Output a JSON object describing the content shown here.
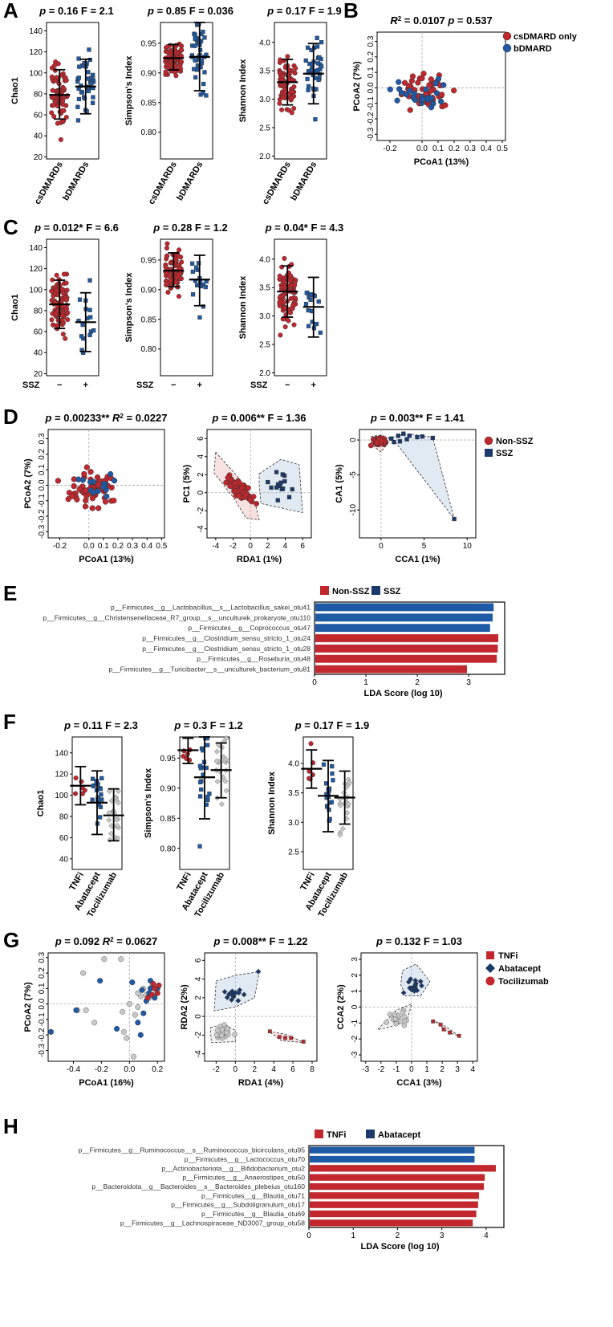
{
  "panel_labels": [
    "A",
    "B",
    "C",
    "D",
    "E",
    "F",
    "G",
    "H"
  ],
  "colors": {
    "red": "#c1272d",
    "blue": "#1f5aa6",
    "navy": "#1b3a6b",
    "gray": "#c8c8c8",
    "bar_red": "#c1272d",
    "bar_blue": "#1f5aa6"
  },
  "chart_data": [
    {
      "id": "A1",
      "panel": "A",
      "type": "scatter",
      "title": "p = 0.16   F = 2.1",
      "ylabel": "Chao1",
      "categories": [
        "csDMARDs",
        "bDMARDs"
      ],
      "yticks": [
        20,
        40,
        60,
        80,
        100,
        120,
        140
      ],
      "ylim": [
        18,
        148
      ],
      "groups": [
        {
          "color": "red",
          "shape": "circle",
          "mean": 79,
          "low": 56,
          "high": 103
        },
        {
          "color": "blue",
          "shape": "square",
          "mean": 87,
          "low": 61,
          "high": 113
        }
      ]
    },
    {
      "id": "A2",
      "panel": "A",
      "type": "scatter",
      "title": "p = 0.85   F = 0.036",
      "ylabel": "Simpson's Index",
      "categories": [
        "csDMARDs",
        "bDMARDs"
      ],
      "yticks": [
        0.8,
        0.85,
        0.9,
        0.95
      ],
      "ylim": [
        0.755,
        0.985
      ],
      "groups": [
        {
          "color": "red",
          "shape": "circle",
          "mean": 0.925,
          "low": 0.905,
          "high": 0.948
        },
        {
          "color": "blue",
          "shape": "square",
          "mean": 0.927,
          "low": 0.87,
          "high": 0.985
        }
      ]
    },
    {
      "id": "A3",
      "panel": "A",
      "type": "scatter",
      "title": "p = 0.17   F = 1.9",
      "ylabel": "Shannon Index",
      "categories": [
        "csDMARDs",
        "bDMARDs"
      ],
      "yticks": [
        2.0,
        2.5,
        3.0,
        3.5,
        4.0
      ],
      "ylim": [
        1.95,
        4.35
      ],
      "groups": [
        {
          "color": "red",
          "shape": "circle",
          "mean": 3.3,
          "low": 2.9,
          "high": 3.7
        },
        {
          "color": "blue",
          "shape": "square",
          "mean": 3.45,
          "low": 2.92,
          "high": 3.98
        }
      ]
    },
    {
      "id": "B",
      "panel": "B",
      "type": "scatter",
      "title": "R2 = 0.0107   p = 0.537",
      "xlabel": "PCoA1 (13%)",
      "ylabel": "PCoA2 (7%)",
      "xticks": [
        "-0.2",
        "0.0",
        "0.1",
        "0.2",
        "0.3",
        "0.4",
        "0.5"
      ],
      "xtickvals": [
        -0.2,
        0,
        0.1,
        0.2,
        0.3,
        0.4,
        0.5
      ],
      "yticks": [
        "-0.3",
        "-0.2",
        "-0.1",
        "0.0",
        "0.1",
        "0.2",
        "0.3"
      ],
      "ytickvals": [
        -0.3,
        -0.2,
        -0.1,
        0,
        0.1,
        0.2,
        0.3
      ],
      "xlim": [
        -0.28,
        0.52
      ],
      "ylim": [
        -0.34,
        0.36
      ],
      "legend": [
        "csDMARD only",
        "bDMARD"
      ]
    },
    {
      "id": "C1",
      "panel": "C",
      "type": "scatter",
      "title": "p = 0.012*   F = 6.6",
      "ylabel": "Chao1",
      "categories": [
        "−",
        "+"
      ],
      "group_title": "SSZ",
      "yticks": [
        20,
        40,
        60,
        80,
        100,
        120,
        140
      ],
      "ylim": [
        18,
        148
      ],
      "groups": [
        {
          "color": "red",
          "shape": "circle",
          "mean": 86,
          "low": 63,
          "high": 109
        },
        {
          "color": "blue",
          "shape": "square",
          "mean": 69,
          "low": 41,
          "high": 97
        }
      ]
    },
    {
      "id": "C2",
      "panel": "C",
      "type": "scatter",
      "title": "p = 0.28   F = 1.2",
      "ylabel": "Simpson's Index",
      "categories": [
        "−",
        "+"
      ],
      "group_title": "SSZ",
      "yticks": [
        0.8,
        0.85,
        0.9,
        0.95
      ],
      "ylim": [
        0.755,
        0.985
      ],
      "groups": [
        {
          "color": "red",
          "shape": "circle",
          "mean": 0.932,
          "low": 0.905,
          "high": 0.962
        },
        {
          "color": "blue",
          "shape": "square",
          "mean": 0.917,
          "low": 0.873,
          "high": 0.958
        }
      ]
    },
    {
      "id": "C3",
      "panel": "C",
      "type": "scatter",
      "title": "p = 0.04*   F = 4.3",
      "ylabel": "Shannon Index",
      "categories": [
        "−",
        "+"
      ],
      "group_title": "SSZ",
      "yticks": [
        2.0,
        2.5,
        3.0,
        3.5,
        4.0
      ],
      "ylim": [
        1.95,
        4.35
      ],
      "groups": [
        {
          "color": "red",
          "shape": "circle",
          "mean": 3.43,
          "low": 2.98,
          "high": 3.88
        },
        {
          "color": "blue",
          "shape": "square",
          "mean": 3.16,
          "low": 2.63,
          "high": 3.68
        }
      ]
    },
    {
      "id": "D1",
      "panel": "D",
      "type": "scatter",
      "title": "p = 0.00233**   R2 = 0.0227",
      "xlabel": "PCoA1 (13%)",
      "ylabel": "PCoA2 (7%)",
      "xticks": [
        "-0.2",
        "0.0",
        "0.1",
        "0.2",
        "0.3",
        "0.4",
        "0.5"
      ],
      "xtickvals": [
        -0.2,
        0,
        0.1,
        0.2,
        0.3,
        0.4,
        0.5
      ],
      "yticks": [
        "-0.3",
        "-0.2",
        "-0.1",
        "0.0",
        "0.1",
        "0.2",
        "0.3"
      ],
      "ytickvals": [
        -0.3,
        -0.2,
        -0.1,
        0,
        0.1,
        0.2,
        0.3
      ],
      "xlim": [
        -0.28,
        0.52
      ],
      "ylim": [
        -0.34,
        0.36
      ]
    },
    {
      "id": "D2",
      "panel": "D",
      "type": "scatter",
      "title": "p = 0.006**   F = 1.36",
      "xlabel": "RDA1 (1%)",
      "ylabel": "PC1 (5%)",
      "xticks": [
        "-4",
        "-2",
        "0",
        "2",
        "4",
        "6"
      ],
      "xtickvals": [
        -4,
        -2,
        0,
        2,
        4,
        6
      ],
      "yticks": [
        "-4",
        "-2",
        "0",
        "2",
        "4",
        "6"
      ],
      "ytickvals": [
        -4,
        -2,
        0,
        2,
        4,
        6
      ],
      "xlim": [
        -5,
        7
      ],
      "ylim": [
        -5,
        7
      ]
    },
    {
      "id": "D3",
      "panel": "D",
      "type": "scatter",
      "title": "p = 0.003**   F = 1.41",
      "xlabel": "CCA1 (1%)",
      "ylabel": "CA1 (5%)",
      "xticks": [
        "0",
        "5",
        "10"
      ],
      "xtickvals": [
        0,
        5,
        10
      ],
      "yticks": [
        "0",
        "-5",
        "-10"
      ],
      "ytickvals": [
        0,
        -5,
        -10
      ],
      "xlim": [
        -2.5,
        11
      ],
      "ylim": [
        -14,
        1.5
      ],
      "legend": [
        "Non-SSZ",
        "SSZ"
      ]
    },
    {
      "id": "E",
      "panel": "E",
      "type": "bar",
      "orientation": "horizontal",
      "xlabel": "LDA Score (log 10)",
      "xticks": [
        0,
        1,
        2,
        3
      ],
      "xlim": [
        0,
        3.7
      ],
      "legend": [
        "Non-SSZ",
        "SSZ"
      ],
      "categories": [
        "p__Firmicutes__g__Lactobacillus__s__Lactobacillus_sakei_otu41",
        "p__Firmicutes__g__Christensenellaceae_R7_group__s__unculturek_prokaryote_otu110",
        "p__Firmicutes__g__Coprococcus_otu47",
        "p__Firmicutes__g__Clostridium_sensu_stricto_1_otu24",
        "p__Firmicutes__g__Clostridium_sensu_stricto_1_otu28",
        "p__Firmicutes__g__Roseburia_otu48",
        "p__Firmicutes__g__Turicibacter__s__unculturek_bacterium_otu81"
      ],
      "values": [
        3.47,
        3.45,
        3.4,
        3.56,
        3.55,
        3.53,
        2.95
      ],
      "group": [
        "SSZ",
        "SSZ",
        "SSZ",
        "Non-SSZ",
        "Non-SSZ",
        "Non-SSZ",
        "Non-SSZ"
      ]
    },
    {
      "id": "F1",
      "panel": "F",
      "type": "scatter",
      "title": "p = 0.11   F = 2.3",
      "ylabel": "Chao1",
      "categories": [
        "TNFi",
        "Abatacept",
        "Tocilizumab"
      ],
      "yticks": [
        40,
        60,
        80,
        100,
        120,
        140
      ],
      "ylim": [
        30,
        155
      ],
      "groups": [
        {
          "color": "red",
          "shape": "circle",
          "mean": 109,
          "low": 91,
          "high": 127
        },
        {
          "color": "blue",
          "shape": "square",
          "mean": 93,
          "low": 63,
          "high": 123
        },
        {
          "color": "gray",
          "shape": "diamond",
          "mean": 81,
          "low": 57,
          "high": 106
        }
      ]
    },
    {
      "id": "F2",
      "panel": "F",
      "type": "scatter",
      "title": "p = 0.3   F = 1.2",
      "ylabel": "Simpson's Index",
      "categories": [
        "TNFi",
        "Abatacept",
        "Tocilizumab"
      ],
      "yticks": [
        0.8,
        0.85,
        0.9,
        0.95
      ],
      "ylim": [
        0.765,
        0.985
      ],
      "groups": [
        {
          "color": "red",
          "shape": "circle",
          "mean": 0.963,
          "low": 0.941,
          "high": 0.983
        },
        {
          "color": "blue",
          "shape": "square",
          "mean": 0.918,
          "low": 0.849,
          "high": 0.985
        },
        {
          "color": "gray",
          "shape": "diamond",
          "mean": 0.93,
          "low": 0.884,
          "high": 0.975
        }
      ]
    },
    {
      "id": "F3",
      "panel": "F",
      "type": "scatter",
      "title": "p = 0.17   F = 1.9",
      "ylabel": "Shannon Index",
      "categories": [
        "TNFi",
        "Abatacept",
        "Tocilizumab"
      ],
      "yticks": [
        2.5,
        3.0,
        3.5,
        4.0
      ],
      "ylim": [
        2.2,
        4.45
      ],
      "groups": [
        {
          "color": "red",
          "shape": "circle",
          "mean": 3.91,
          "low": 3.58,
          "high": 4.23
        },
        {
          "color": "blue",
          "shape": "square",
          "mean": 3.45,
          "low": 2.84,
          "high": 4.05
        },
        {
          "color": "gray",
          "shape": "diamond",
          "mean": 3.42,
          "low": 2.97,
          "high": 3.87
        }
      ]
    },
    {
      "id": "G1",
      "panel": "G",
      "type": "scatter",
      "title": "p = 0.092   R2 = 0.0627",
      "xlabel": "PCoA1 (16%)",
      "ylabel": "PCoA2 (7%)",
      "xticks": [
        "-0.4",
        "-0.2",
        "0.0",
        "0.2"
      ],
      "xtickvals": [
        -0.4,
        -0.2,
        0,
        0.2
      ],
      "yticks": [
        "-0.3",
        "-0.2",
        "-0.1",
        "0.0",
        "0.1",
        "0.2",
        "0.3"
      ],
      "ytickvals": [
        -0.3,
        -0.2,
        -0.1,
        0,
        0.1,
        0.2,
        0.3
      ],
      "xlim": [
        -0.58,
        0.25
      ],
      "ylim": [
        -0.37,
        0.33
      ]
    },
    {
      "id": "G2",
      "panel": "G",
      "type": "scatter",
      "title": "p = 0.008**   F = 1.22",
      "xlabel": "RDA1 (4%)",
      "ylabel": "RDA2 (2%)",
      "xticks": [
        "-2",
        "0",
        "2",
        "4",
        "6",
        "8"
      ],
      "xtickvals": [
        -2,
        0,
        2,
        4,
        6,
        8
      ],
      "yticks": [
        "-4",
        "-2",
        "0",
        "2",
        "4",
        "6"
      ],
      "ytickvals": [
        -4,
        -2,
        0,
        2,
        4,
        6
      ],
      "xlim": [
        -3.2,
        8.5
      ],
      "ylim": [
        -4.8,
        6.8
      ]
    },
    {
      "id": "G3",
      "panel": "G",
      "type": "scatter",
      "title": "p = 0.132   F = 1.03",
      "xlabel": "CCA1 (3%)",
      "ylabel": "CCA2 (2%)",
      "xticks": [
        "-3",
        "-2",
        "-1",
        "0",
        "1",
        "2",
        "3",
        "4"
      ],
      "xtickvals": [
        -3,
        -2,
        -1,
        0,
        1,
        2,
        3,
        4
      ],
      "yticks": [
        "-3",
        "-2",
        "-1",
        "0",
        "1",
        "2",
        "3"
      ],
      "ytickvals": [
        -3,
        -2,
        -1,
        0,
        1,
        2,
        3
      ],
      "xlim": [
        -3.3,
        4.3
      ],
      "ylim": [
        -3.4,
        3.4
      ],
      "legend": [
        "TNFi",
        "Abatacept",
        "Tocilizumab"
      ]
    },
    {
      "id": "H",
      "panel": "H",
      "type": "bar",
      "orientation": "horizontal",
      "xlabel": "LDA Score (log 10)",
      "xticks": [
        0,
        1,
        2,
        3,
        4
      ],
      "xlim": [
        0,
        4.4
      ],
      "legend": [
        "TNFi",
        "Abatacept"
      ],
      "categories": [
        "p__Firmicutes__g__Ruminococcus__s__Ruminococcus_bicirculans_otu95",
        "p__Firmicutes__g__Lactococcus_otu70",
        "p__Actinobacteriota__g__Bifidobacterium_otu2",
        "p__Firmicutes__g__Anaerostipes_otu50",
        "p__Bacteroidota__g__Bacteroides__s__Bacteroides_plebeius_otu160",
        "p__Firmicutes__g__Blautia_otu71",
        "p__Firmicutes__g__Subdoligranulum_otu17",
        "p__Firmicutes__g__Blautia_otu69",
        "p__Firmicutes__g__Lachnospiraceae_ND3007_group_otu58"
      ],
      "values": [
        3.72,
        3.72,
        4.2,
        3.95,
        3.93,
        3.82,
        3.8,
        3.76,
        3.68
      ],
      "group": [
        "Abatacept",
        "Abatacept",
        "TNFi",
        "TNFi",
        "TNFi",
        "TNFi",
        "TNFi",
        "TNFi",
        "TNFi"
      ]
    }
  ]
}
